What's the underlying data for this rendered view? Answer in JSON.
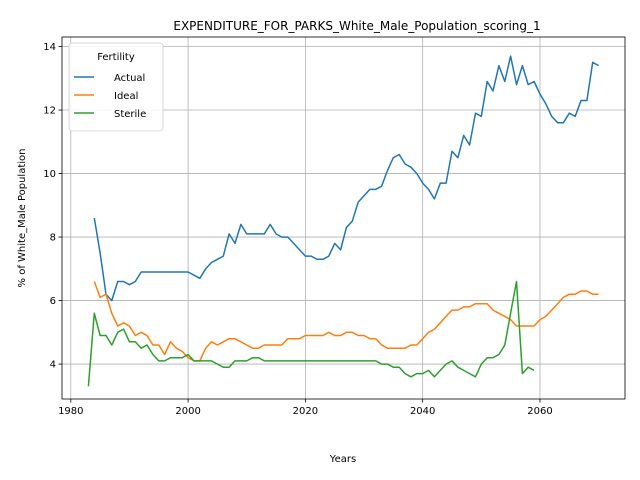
{
  "chart_data": {
    "type": "line",
    "title": "EXPENDITURE_FOR_PARKS_White_Male_Population_scoring_1",
    "xlabel": "Years",
    "ylabel": "% of White_Male Population",
    "xlim": [
      1978.5,
      2074.5
    ],
    "ylim": [
      2.9,
      14.3
    ],
    "xticks": [
      1980,
      2000,
      2020,
      2040,
      2060
    ],
    "yticks": [
      4,
      6,
      8,
      10,
      12,
      14
    ],
    "grid": true,
    "legend": {
      "title": "Fertility",
      "placement": "upper-left"
    },
    "series": [
      {
        "name": "Actual",
        "color": "#1f77b4",
        "x": [
          1984,
          1985,
          1986,
          1987,
          1988,
          1989,
          1990,
          1991,
          1992,
          1993,
          1994,
          1995,
          1996,
          1997,
          1998,
          1999,
          2000,
          2001,
          2002,
          2003,
          2004,
          2005,
          2006,
          2007,
          2008,
          2009,
          2010,
          2011,
          2012,
          2013,
          2014,
          2015,
          2016,
          2017,
          2018,
          2019,
          2020,
          2021,
          2022,
          2023,
          2024,
          2025,
          2026,
          2027,
          2028,
          2029,
          2030,
          2031,
          2032,
          2033,
          2034,
          2035,
          2036,
          2037,
          2038,
          2039,
          2040,
          2041,
          2042,
          2043,
          2044,
          2045,
          2046,
          2047,
          2048,
          2049,
          2050,
          2051,
          2052,
          2053,
          2054,
          2055,
          2056,
          2057,
          2058,
          2059,
          2060,
          2061,
          2062,
          2063,
          2064,
          2065,
          2066,
          2067,
          2068,
          2069,
          2070
        ],
        "y": [
          8.6,
          7.5,
          6.2,
          6.0,
          6.6,
          6.6,
          6.5,
          6.6,
          6.9,
          6.9,
          6.9,
          6.9,
          6.9,
          6.9,
          6.9,
          6.9,
          6.9,
          6.8,
          6.7,
          7.0,
          7.2,
          7.3,
          7.4,
          8.1,
          7.8,
          8.4,
          8.1,
          8.1,
          8.1,
          8.1,
          8.4,
          8.1,
          8.0,
          8.0,
          7.8,
          7.6,
          7.4,
          7.4,
          7.3,
          7.3,
          7.4,
          7.8,
          7.6,
          8.3,
          8.5,
          9.1,
          9.3,
          9.5,
          9.5,
          9.6,
          10.1,
          10.5,
          10.6,
          10.3,
          10.2,
          10.0,
          9.7,
          9.5,
          9.2,
          9.7,
          9.7,
          10.7,
          10.5,
          11.2,
          10.9,
          11.9,
          11.8,
          12.9,
          12.6,
          13.4,
          12.9,
          13.7,
          12.8,
          13.4,
          12.8,
          12.9,
          12.5,
          12.2,
          11.8,
          11.6,
          11.6,
          11.9,
          11.8,
          12.3,
          12.3,
          13.5,
          13.4
        ]
      },
      {
        "name": "Ideal",
        "color": "#ff7f0e",
        "x": [
          1984,
          1985,
          1986,
          1987,
          1988,
          1989,
          1990,
          1991,
          1992,
          1993,
          1994,
          1995,
          1996,
          1997,
          1998,
          1999,
          2000,
          2001,
          2002,
          2003,
          2004,
          2005,
          2006,
          2007,
          2008,
          2009,
          2010,
          2011,
          2012,
          2013,
          2014,
          2015,
          2016,
          2017,
          2018,
          2019,
          2020,
          2021,
          2022,
          2023,
          2024,
          2025,
          2026,
          2027,
          2028,
          2029,
          2030,
          2031,
          2032,
          2033,
          2034,
          2035,
          2036,
          2037,
          2038,
          2039,
          2040,
          2041,
          2042,
          2043,
          2044,
          2045,
          2046,
          2047,
          2048,
          2049,
          2050,
          2051,
          2052,
          2053,
          2054,
          2055,
          2056,
          2057,
          2058,
          2059,
          2060,
          2061,
          2062,
          2063,
          2064,
          2065,
          2066,
          2067,
          2068,
          2069,
          2070
        ],
        "y": [
          6.6,
          6.1,
          6.2,
          5.6,
          5.2,
          5.3,
          5.2,
          4.9,
          5.0,
          4.9,
          4.6,
          4.6,
          4.3,
          4.7,
          4.5,
          4.4,
          4.2,
          4.1,
          4.1,
          4.5,
          4.7,
          4.6,
          4.7,
          4.8,
          4.8,
          4.7,
          4.6,
          4.5,
          4.5,
          4.6,
          4.6,
          4.6,
          4.6,
          4.8,
          4.8,
          4.8,
          4.9,
          4.9,
          4.9,
          4.9,
          5.0,
          4.9,
          4.9,
          5.0,
          5.0,
          4.9,
          4.9,
          4.8,
          4.8,
          4.6,
          4.5,
          4.5,
          4.5,
          4.5,
          4.6,
          4.6,
          4.8,
          5.0,
          5.1,
          5.3,
          5.5,
          5.7,
          5.7,
          5.8,
          5.8,
          5.9,
          5.9,
          5.9,
          5.7,
          5.6,
          5.5,
          5.4,
          5.2,
          5.2,
          5.2,
          5.2,
          5.4,
          5.5,
          5.7,
          5.9,
          6.1,
          6.2,
          6.2,
          6.3,
          6.3,
          6.2,
          6.2
        ]
      },
      {
        "name": "Sterile",
        "color": "#2ca02c",
        "x": [
          1983,
          1984,
          1985,
          1986,
          1987,
          1988,
          1989,
          1990,
          1991,
          1992,
          1993,
          1994,
          1995,
          1996,
          1997,
          1998,
          1999,
          2000,
          2001,
          2002,
          2003,
          2004,
          2005,
          2006,
          2007,
          2008,
          2009,
          2010,
          2011,
          2012,
          2013,
          2014,
          2015,
          2016,
          2017,
          2018,
          2019,
          2020,
          2021,
          2022,
          2023,
          2024,
          2025,
          2026,
          2027,
          2028,
          2029,
          2030,
          2031,
          2032,
          2033,
          2034,
          2035,
          2036,
          2037,
          2038,
          2039,
          2040,
          2041,
          2042,
          2043,
          2044,
          2045,
          2046,
          2047,
          2048,
          2049,
          2050,
          2051,
          2052,
          2053,
          2054,
          2055,
          2056,
          2057,
          2058,
          2059
        ],
        "y": [
          3.3,
          5.6,
          4.9,
          4.9,
          4.6,
          5.0,
          5.1,
          4.7,
          4.7,
          4.5,
          4.6,
          4.3,
          4.1,
          4.1,
          4.2,
          4.2,
          4.2,
          4.3,
          4.1,
          4.1,
          4.1,
          4.1,
          4.0,
          3.9,
          3.9,
          4.1,
          4.1,
          4.1,
          4.2,
          4.2,
          4.1,
          4.1,
          4.1,
          4.1,
          4.1,
          4.1,
          4.1,
          4.1,
          4.1,
          4.1,
          4.1,
          4.1,
          4.1,
          4.1,
          4.1,
          4.1,
          4.1,
          4.1,
          4.1,
          4.1,
          4.0,
          4.0,
          3.9,
          3.9,
          3.7,
          3.6,
          3.7,
          3.7,
          3.8,
          3.6,
          3.8,
          4.0,
          4.1,
          3.9,
          3.8,
          3.7,
          3.6,
          4.0,
          4.2,
          4.2,
          4.3,
          4.6,
          5.6,
          6.6,
          3.7,
          3.9,
          3.8
        ]
      }
    ]
  }
}
